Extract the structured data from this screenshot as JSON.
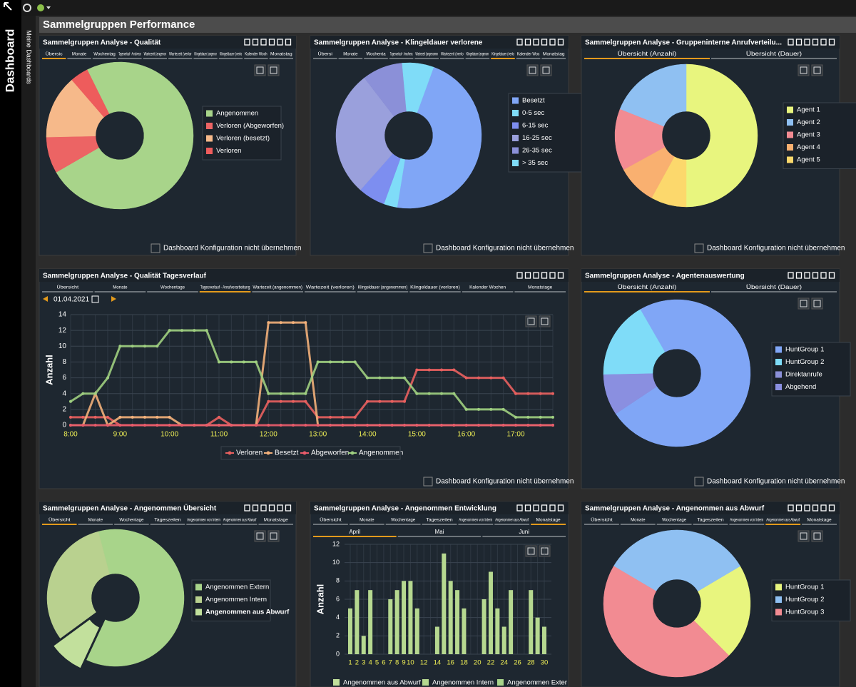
{
  "sidebar": {
    "title": "Dashboard",
    "subtitle": "Meine Dashboards"
  },
  "header": {
    "title": "Sammelgruppen Performance"
  },
  "panels": [
    {
      "title": "Sammelgruppen Analyse - Qualität",
      "tabs": [
        "Übersic",
        "Monate",
        "Wochentag",
        "Tagesverlauf - Anrufverar",
        "Wartezeit (angenor",
        "Wartezeit (verlor",
        "Klingeldauer (angenor",
        "Klingeldauer (verlo",
        "Kalender Woch",
        "Monatstag"
      ],
      "active_tab": 0,
      "option": "Dashboard Konfiguration nicht übernehmen",
      "chart": {
        "type": "pie",
        "categories": [
          "Angenommen",
          "Verloren (Abgeworfen)",
          "Verloren (besetzt)",
          "Verloren"
        ],
        "values": [
          74,
          8,
          14,
          4
        ],
        "colors": [
          "#a8d48a",
          "#ec6464",
          "#f6b98a",
          "#ee5c5c"
        ]
      }
    },
    {
      "title": "Sammelgruppen Analyse - Klingeldauer verlorene",
      "tabs": [
        "Übersi",
        "Monate",
        "Wochenta",
        "Tagesverlauf - Anrufvera",
        "Wartezeit (angenomm",
        "Wartezeit (verlo",
        "Klingeldauer (angenom",
        "Klingeldauer (verlo",
        "Kalender Woc",
        "Monatstag"
      ],
      "active_tab": 7,
      "option": "Dashboard Konfiguration nicht übernehmen",
      "chart": {
        "type": "pie",
        "categories": [
          "Besetzt",
          "0-5 sec",
          "6-15 sec",
          "16-25 sec",
          "26-35 sec",
          "> 35 sec"
        ],
        "values": [
          47,
          3,
          6,
          28,
          9,
          7
        ],
        "colors": [
          "#80a6f6",
          "#7fdcf8",
          "#7d8ef0",
          "#9aa0dc",
          "#8b90d8",
          "#7fdcf8"
        ]
      }
    },
    {
      "title": "Sammelgruppen Analyse - Gruppeninterne Anrufverteilu...",
      "tabs": [
        "Übersicht (Anzahl)",
        "Übersicht (Dauer)"
      ],
      "active_tab": 0,
      "option": "Dashboard Konfiguration nicht übernehmen",
      "chart": {
        "type": "pie",
        "categories": [
          "Agent 1",
          "Agent 2",
          "Agent 3",
          "Agent 4",
          "Agent 5"
        ],
        "values": [
          50,
          19,
          14,
          9,
          8
        ],
        "colors": [
          "#e8f57e",
          "#8fc0f2",
          "#f28b92",
          "#f9b070",
          "#fcd86c"
        ]
      }
    },
    {
      "title": "Sammelgruppen Analyse - Qualität Tagesverlauf",
      "tabs": [
        "Übersicht",
        "Monate",
        "Wochentage",
        "Tagesverlauf - Anrufverarbeitung",
        "Wartezeit (angenommen)",
        "Wartezeit (verloren)",
        "Klingeldauer (angenommen)",
        "Klingeldauer (verloren)",
        "Kalender Wochen",
        "Monatstage"
      ],
      "active_tab": 3,
      "date": "01.04.2021",
      "option": "Dashboard Konfiguration nicht übernehmen",
      "chart": {
        "type": "line",
        "y_label": "Anzahl",
        "categories": [
          "8:00",
          null,
          null,
          null,
          "9:00",
          null,
          null,
          null,
          "10:00",
          null,
          null,
          null,
          "11:00",
          null,
          null,
          null,
          "12:00",
          null,
          null,
          null,
          "13:00",
          null,
          null,
          null,
          "14:00",
          null,
          null,
          null,
          "15:00",
          null,
          null,
          null,
          "16:00",
          null,
          null,
          null,
          "17:00",
          null,
          null,
          null
        ],
        "series": [
          {
            "name": "Verloren",
            "color": "#e8605f",
            "values": [
              1,
              1,
              1,
              1,
              0,
              0,
              0,
              0,
              0,
              0,
              0,
              0,
              1,
              0,
              0,
              0,
              3,
              3,
              3,
              3,
              1,
              1,
              1,
              1,
              3,
              3,
              3,
              3,
              7,
              7,
              7,
              7,
              6,
              6,
              6,
              6,
              4,
              4,
              4,
              4
            ]
          },
          {
            "name": "Besetzt",
            "color": "#f2b07a",
            "values": [
              0,
              0,
              4,
              0,
              1,
              1,
              1,
              1,
              1,
              0,
              0,
              0,
              0,
              0,
              0,
              0,
              13,
              13,
              13,
              13,
              0,
              0,
              0,
              0,
              0,
              0,
              0,
              0,
              0,
              0,
              0,
              0,
              0,
              0,
              0,
              0,
              0,
              0,
              0,
              0
            ]
          },
          {
            "name": "Abgeworfen",
            "color": "#e85b6a",
            "values": [
              0,
              0,
              0,
              0,
              0,
              0,
              0,
              0,
              0,
              0,
              0,
              0,
              0,
              0,
              0,
              0,
              0,
              0,
              0,
              0,
              0,
              0,
              0,
              0,
              0,
              0,
              0,
              0,
              0,
              0,
              0,
              0,
              0,
              0,
              0,
              0,
              0,
              0,
              0,
              0
            ]
          },
          {
            "name": "Angenommen",
            "color": "#9fcf80",
            "values": [
              3,
              4,
              4,
              6,
              10,
              10,
              10,
              10,
              12,
              12,
              12,
              12,
              8,
              8,
              8,
              8,
              4,
              4,
              4,
              4,
              8,
              8,
              8,
              8,
              6,
              6,
              6,
              6,
              4,
              4,
              4,
              4,
              2,
              2,
              2,
              2,
              1,
              1,
              1,
              1
            ]
          }
        ],
        "ylim": [
          0,
          14
        ],
        "yticks": [
          0,
          2,
          4,
          6,
          8,
          10,
          12,
          14
        ],
        "grid": true
      }
    },
    {
      "title": "Sammelgruppen Analyse - Agentenauswertung",
      "tabs": [
        "Übersicht (Anzahl)",
        "Übersicht (Dauer)"
      ],
      "active_tab": 0,
      "option": "Dashboard Konfiguration nicht übernehmen",
      "chart": {
        "type": "pie",
        "categories": [
          "HuntGroup 1",
          "HuntGroup 2",
          "Direktanrufe",
          "Abgehend"
        ],
        "values": [
          74,
          17,
          0,
          9
        ],
        "colors": [
          "#80a6f6",
          "#7fdcf8",
          "#8b90d8",
          "#8a8fe0"
        ]
      }
    },
    {
      "title": "Sammelgruppen Analyse - Angenommen Übersicht",
      "tabs": [
        "Übersicht",
        "Monate",
        "Wochentage",
        "Tageszeiten",
        "Angenommen von Intern",
        "Angenommen aus Abwurf",
        "Monatstage"
      ],
      "active_tab": 0,
      "chart": {
        "type": "pie",
        "categories": [
          "Angenommen Extern",
          "Angenommen Intern",
          "Angenommen aus Abwurf"
        ],
        "values": [
          61,
          31,
          8
        ],
        "colors": [
          "#a8d48a",
          "#b9d18f",
          "#c2e09c"
        ]
      }
    },
    {
      "title": "Sammelgruppen Analyse - Angenommen Entwicklung",
      "tabs": [
        "Übersicht",
        "Monate",
        "Wochentage",
        "Tageszeiten",
        "Angenommen von Intern",
        "Angenommen aus Abwurf",
        "Monatstage"
      ],
      "active_tab": 6,
      "subtabs": [
        "April",
        "Mai",
        "Juni"
      ],
      "active_subtab": 0,
      "chart": {
        "type": "bar",
        "y_label": "Anzahl",
        "categories": [
          1,
          2,
          3,
          4,
          5,
          6,
          7,
          8,
          9,
          10,
          null,
          12,
          null,
          14,
          null,
          16,
          null,
          18,
          null,
          20,
          null,
          22,
          null,
          24,
          null,
          26,
          null,
          28,
          null,
          30
        ],
        "series": [
          {
            "name": "Angenommen aus Abwurf",
            "color": "#c2e09c",
            "values": [
              0,
              0,
              0,
              0,
              0,
              0,
              0,
              0,
              0,
              0,
              0,
              0,
              0,
              0,
              0,
              0,
              0,
              0,
              0,
              0,
              0,
              0,
              0,
              0,
              0,
              0,
              0,
              0,
              0,
              0
            ]
          },
          {
            "name": "Angenommen Intern",
            "color": "#b6d890",
            "values": [
              5,
              7,
              2,
              7,
              0,
              0,
              6,
              7,
              8,
              8,
              5,
              0,
              0,
              3,
              11,
              8,
              7,
              5,
              0,
              0,
              6,
              9,
              5,
              3,
              7,
              0,
              0,
              7,
              4,
              3
            ]
          },
          {
            "name": "Angenommen Exter",
            "color": "#a8d48a",
            "values": [
              0,
              0,
              0,
              0,
              0,
              0,
              0,
              0,
              0,
              0,
              0,
              0,
              0,
              0,
              0,
              0,
              0,
              0,
              0,
              0,
              0,
              0,
              0,
              0,
              0,
              0,
              0,
              0,
              0,
              0
            ]
          }
        ],
        "ylim": [
          0,
          12
        ],
        "yticks": [
          0,
          2,
          4,
          6,
          8,
          10,
          12
        ],
        "grid": true
      }
    },
    {
      "title": "Sammelgruppen Analyse - Angenommen aus Abwurf",
      "tabs": [
        "Übersicht",
        "Monate",
        "Wochentage",
        "Tageszeiten",
        "Angenommen von Intern",
        "Angenommen aus Abwurf",
        "Monatstage"
      ],
      "active_tab": 5,
      "chart": {
        "type": "pie",
        "categories": [
          "HuntGroup 1",
          "HuntGroup 2",
          "HuntGroup 3"
        ],
        "values": [
          21,
          33,
          46
        ],
        "colors": [
          "#e8f57e",
          "#8fc0f2",
          "#f28b92"
        ]
      }
    }
  ]
}
